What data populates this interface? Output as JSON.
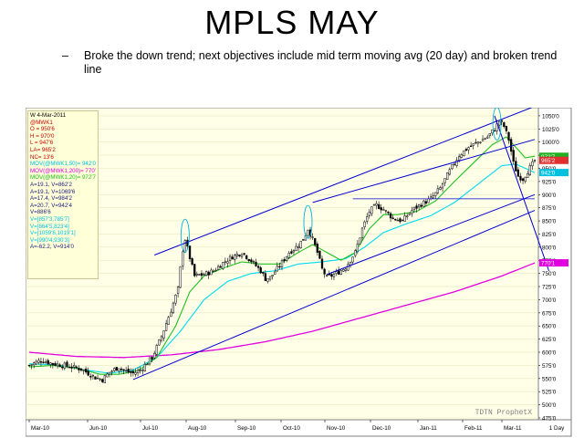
{
  "slide": {
    "title": "MPLS MAY",
    "bullet_dash": "–",
    "bullet_text": "Broke the down trend; next objectives include mid term moving avg (20 day) and broken trend line"
  },
  "info_box": {
    "lines": [
      {
        "text": "W 4-Mar-2011",
        "color": "#000000"
      },
      {
        "text": "@MWK1",
        "color": "#c00000"
      },
      {
        "text": "O = 950'6",
        "color": "#c00000"
      },
      {
        "text": "H = 970'0",
        "color": "#c00000"
      },
      {
        "text": "L = 947'6",
        "color": "#c00000"
      },
      {
        "text": "LA= 965'2",
        "color": "#c00000"
      },
      {
        "text": "NC= 13'6",
        "color": "#c00000"
      },
      {
        "text": "MOV(@MWK1,50)= 942'0",
        "color": "#00c0e0"
      },
      {
        "text": "MOV(@MWK1,200)= 770'1",
        "color": "#e000e0"
      },
      {
        "text": "MOV(@MWK1,20)= 972'7",
        "color": "#20c020"
      },
      {
        "text": "A=19.1, V=862'2",
        "color": "#202080"
      },
      {
        "text": "A=19.1, V=1069'6",
        "color": "#202080"
      },
      {
        "text": "A=17.4, V=984'2",
        "color": "#202080"
      },
      {
        "text": "A=20.7, V=942'4",
        "color": "#202080"
      },
      {
        "text": "V=886'6",
        "color": "#202080"
      },
      {
        "text": "V=[857'3,785'7]",
        "color": "#00c0e0"
      },
      {
        "text": "V=[864'5,823'4]",
        "color": "#00c0e0"
      },
      {
        "text": "V=[1059'8,1019'1]",
        "color": "#00c0e0"
      },
      {
        "text": "V=[990'4,930'3]",
        "color": "#00c0e0"
      },
      {
        "text": "A=-62.2, V=914'0",
        "color": "#202080"
      }
    ]
  },
  "chart_data": {
    "type": "candlestick",
    "watermark": "TDTN ProphetX",
    "x_ticks": [
      "Mar-10",
      "Jun-10",
      "Jul-10",
      "Aug-10",
      "Sep-10",
      "Oct-10",
      "Nov-10",
      "Dec-10",
      "Jan-11",
      "Feb-11",
      "Mar-11"
    ],
    "period_label": "1 Day",
    "ylim": [
      475,
      1062
    ],
    "y_ticks": [
      "475'0",
      "500'0",
      "525'0",
      "550'0",
      "575'0",
      "600'0",
      "625'0",
      "650'0",
      "675'0",
      "700'0",
      "725'0",
      "750'0",
      "775'0",
      "800'0",
      "825'0",
      "850'0",
      "875'0",
      "900'0",
      "925'0",
      "950'0",
      "975'0",
      "1000'0",
      "1025'0",
      "1050'0"
    ],
    "last_price_tags": [
      {
        "label": "972'7",
        "value": 972.9,
        "color": "#20b020"
      },
      {
        "label": "965'2",
        "value": 965.2,
        "color": "#e03030"
      },
      {
        "label": "942'0",
        "value": 942.0,
        "color": "#00c0e0"
      },
      {
        "label": "770'1",
        "value": 770.1,
        "color": "#e000e0"
      }
    ],
    "price_key_points": [
      [
        0,
        575
      ],
      [
        5,
        585
      ],
      [
        10,
        578
      ],
      [
        16,
        574
      ],
      [
        22,
        568
      ],
      [
        28,
        552
      ],
      [
        31,
        548
      ],
      [
        34,
        562
      ],
      [
        38,
        572
      ],
      [
        40,
        565
      ],
      [
        44,
        560
      ],
      [
        47,
        566
      ],
      [
        52,
        590
      ],
      [
        56,
        630
      ],
      [
        60,
        680
      ],
      [
        63,
        720
      ],
      [
        64,
        760
      ],
      [
        65,
        795
      ],
      [
        66,
        815
      ],
      [
        68,
        780
      ],
      [
        70,
        745
      ],
      [
        74,
        748
      ],
      [
        78,
        755
      ],
      [
        82,
        770
      ],
      [
        86,
        782
      ],
      [
        90,
        790
      ],
      [
        94,
        774
      ],
      [
        98,
        755
      ],
      [
        100,
        740
      ],
      [
        102,
        742
      ],
      [
        106,
        765
      ],
      [
        110,
        790
      ],
      [
        113,
        800
      ],
      [
        116,
        815
      ],
      [
        118,
        835
      ],
      [
        120,
        815
      ],
      [
        122,
        790
      ],
      [
        124,
        758
      ],
      [
        126,
        742
      ],
      [
        130,
        750
      ],
      [
        134,
        762
      ],
      [
        138,
        790
      ],
      [
        141,
        835
      ],
      [
        144,
        868
      ],
      [
        147,
        880
      ],
      [
        150,
        872
      ],
      [
        154,
        855
      ],
      [
        158,
        850
      ],
      [
        162,
        870
      ],
      [
        166,
        882
      ],
      [
        170,
        892
      ],
      [
        174,
        912
      ],
      [
        178,
        945
      ],
      [
        182,
        975
      ],
      [
        186,
        990
      ],
      [
        190,
        1000
      ],
      [
        194,
        1010
      ],
      [
        197,
        1025
      ],
      [
        199,
        1040
      ],
      [
        201,
        1030
      ],
      [
        203,
        1005
      ],
      [
        205,
        960
      ],
      [
        207,
        935
      ],
      [
        209,
        930
      ],
      [
        211,
        945
      ],
      [
        213,
        958
      ],
      [
        214,
        965
      ]
    ],
    "ma20_key_points": [
      [
        0,
        572
      ],
      [
        10,
        575
      ],
      [
        20,
        570
      ],
      [
        30,
        558
      ],
      [
        38,
        558
      ],
      [
        46,
        565
      ],
      [
        54,
        590
      ],
      [
        62,
        650
      ],
      [
        68,
        715
      ],
      [
        74,
        745
      ],
      [
        82,
        760
      ],
      [
        90,
        772
      ],
      [
        98,
        768
      ],
      [
        106,
        768
      ],
      [
        114,
        790
      ],
      [
        120,
        805
      ],
      [
        126,
        790
      ],
      [
        132,
        775
      ],
      [
        138,
        790
      ],
      [
        144,
        835
      ],
      [
        150,
        862
      ],
      [
        156,
        862
      ],
      [
        164,
        868
      ],
      [
        172,
        888
      ],
      [
        180,
        925
      ],
      [
        188,
        960
      ],
      [
        196,
        995
      ],
      [
        202,
        1010
      ],
      [
        206,
        990
      ],
      [
        210,
        970
      ],
      [
        214,
        973
      ]
    ],
    "ma50_key_points": [
      [
        0,
        578
      ],
      [
        12,
        576
      ],
      [
        24,
        566
      ],
      [
        34,
        560
      ],
      [
        44,
        566
      ],
      [
        54,
        590
      ],
      [
        64,
        640
      ],
      [
        74,
        700
      ],
      [
        84,
        735
      ],
      [
        94,
        750
      ],
      [
        104,
        755
      ],
      [
        114,
        768
      ],
      [
        124,
        772
      ],
      [
        134,
        778
      ],
      [
        142,
        800
      ],
      [
        150,
        828
      ],
      [
        160,
        845
      ],
      [
        170,
        860
      ],
      [
        180,
        885
      ],
      [
        190,
        920
      ],
      [
        200,
        955
      ],
      [
        206,
        958
      ],
      [
        210,
        950
      ],
      [
        214,
        942
      ]
    ],
    "ma200_key_points": [
      [
        0,
        600
      ],
      [
        20,
        592
      ],
      [
        40,
        590
      ],
      [
        60,
        595
      ],
      [
        80,
        605
      ],
      [
        100,
        620
      ],
      [
        120,
        640
      ],
      [
        140,
        665
      ],
      [
        160,
        690
      ],
      [
        180,
        715
      ],
      [
        200,
        745
      ],
      [
        214,
        770
      ]
    ],
    "trend_lines": [
      {
        "name": "upper-channel",
        "points": [
          [
            53,
            785
          ],
          [
            214,
            1068
          ]
        ]
      },
      {
        "name": "mid-channel",
        "points": [
          [
            120,
            885
          ],
          [
            214,
            1005
          ]
        ]
      },
      {
        "name": "lower-channel",
        "points": [
          [
            44,
            548
          ],
          [
            214,
            870
          ]
        ]
      },
      {
        "name": "lower-channel-2",
        "points": [
          [
            126,
            748
          ],
          [
            214,
            900
          ]
        ]
      },
      {
        "name": "down-trend",
        "points": [
          [
            197,
            1050
          ],
          [
            220,
            755
          ]
        ]
      },
      {
        "name": "horizontal-support",
        "points": [
          [
            137,
            892
          ],
          [
            214,
            892
          ]
        ]
      }
    ],
    "highlight_ellipses": [
      {
        "x": 66,
        "y": 822
      },
      {
        "x": 118,
        "y": 848
      },
      {
        "x": 198,
        "y": 1035
      }
    ],
    "n_bars": 215
  }
}
